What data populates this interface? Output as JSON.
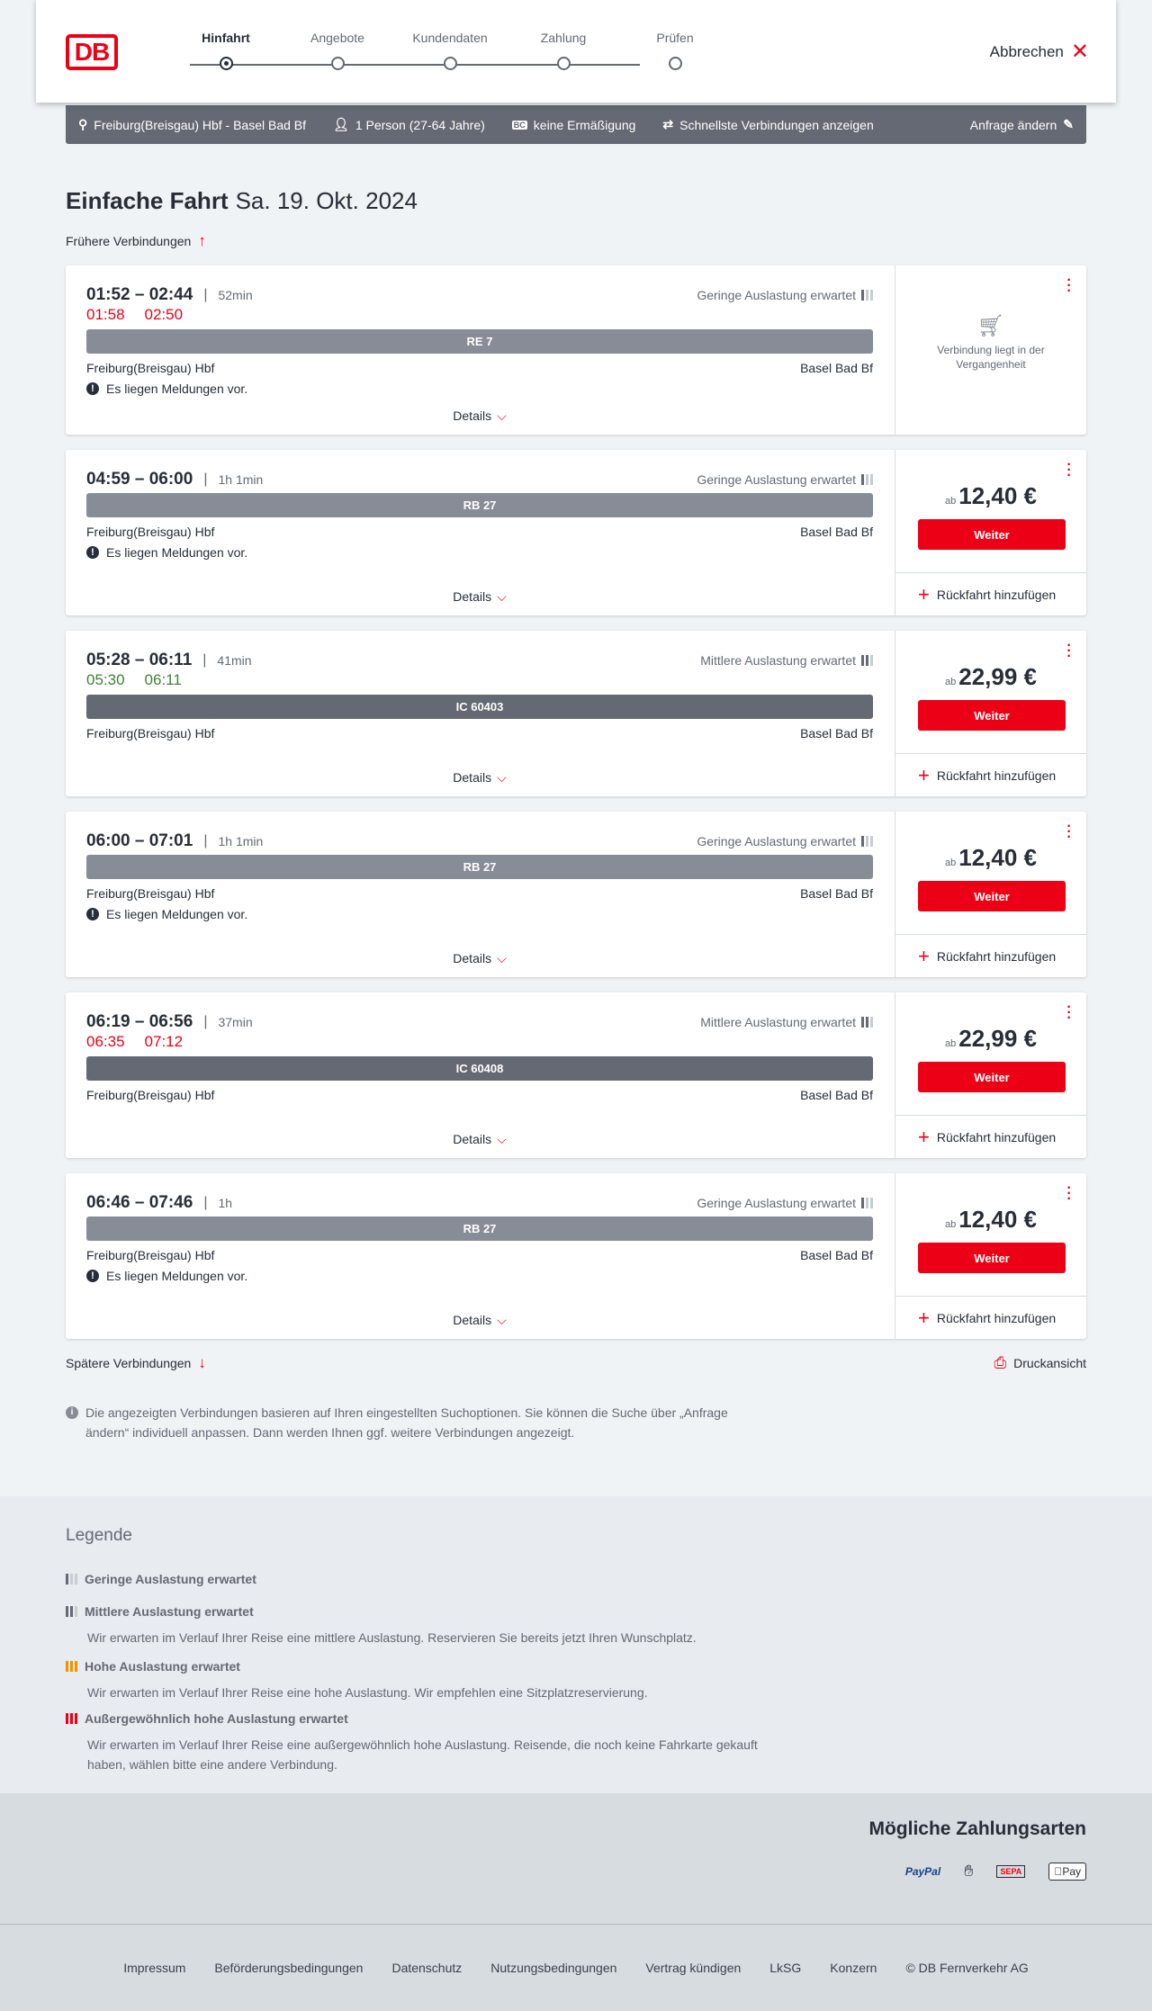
{
  "header": {
    "logo": "DB",
    "steps": [
      "Hinfahrt",
      "Angebote",
      "Kundendaten",
      "Zahlung",
      "Prüfen"
    ],
    "active_step": 0,
    "cancel": "Abbrechen"
  },
  "filter": {
    "route": "Freiburg(Breisgau) Hbf - Basel Bad Bf",
    "travellers": "1 Person (27-64 Jahre)",
    "discount_badge": "BC",
    "discount": "keine Ermäßigung",
    "fastest": "Schnellste Verbindungen anzeigen",
    "change": "Anfrage ändern"
  },
  "title": {
    "type": "Einfache Fahrt",
    "date": "Sa. 19. Okt. 2024"
  },
  "earlier": "Frühere Verbindungen",
  "later": "Spätere Verbindungen",
  "print": "Druckansicht",
  "common": {
    "from": "Freiburg(Breisgau) Hbf",
    "to": "Basel Bad Bf",
    "message": "Es liegen Meldungen vor.",
    "details": "Details",
    "price_prefix": "ab",
    "continue": "Weiter",
    "return": "Rückfahrt hinzufügen",
    "past": "Verbindung liegt in der Vergangenheit"
  },
  "connections": [
    {
      "times": "01:52 – 02:44",
      "duration": "52min",
      "occupancy": "Geringe Auslastung erwartet",
      "occ_level": 1,
      "rt_dep": "01:58",
      "rt_arr": "02:50",
      "rt_status": "late",
      "train": "RE 7",
      "message": true,
      "price": null,
      "past": true
    },
    {
      "times": "04:59 – 06:00",
      "duration": "1h 1min",
      "occupancy": "Geringe Auslastung erwartet",
      "occ_level": 1,
      "train": "RB 27",
      "message": true,
      "price": "12,40 €"
    },
    {
      "times": "05:28 – 06:11",
      "duration": "41min",
      "occupancy": "Mittlere Auslastung erwartet",
      "occ_level": 2,
      "rt_dep": "05:30",
      "rt_arr": "06:11",
      "rt_status": "ontime",
      "train": "IC 60403",
      "message": false,
      "price": "22,99 €"
    },
    {
      "times": "06:00 – 07:01",
      "duration": "1h 1min",
      "occupancy": "Geringe Auslastung erwartet",
      "occ_level": 1,
      "train": "RB 27",
      "message": true,
      "price": "12,40 €"
    },
    {
      "times": "06:19 – 06:56",
      "duration": "37min",
      "occupancy": "Mittlere Auslastung erwartet",
      "occ_level": 2,
      "rt_dep": "06:35",
      "rt_arr": "07:12",
      "rt_status": "late",
      "train": "IC 60408",
      "message": false,
      "price": "22,99 €"
    },
    {
      "times": "06:46 – 07:46",
      "duration": "1h",
      "occupancy": "Geringe Auslastung erwartet",
      "occ_level": 1,
      "train": "RB 27",
      "message": true,
      "price": "12,40 €"
    }
  ],
  "info": "Die angezeigten Verbindungen basieren auf Ihren eingestellten Suchoptionen. Sie können die Suche über „Anfrage ändern“ individuell anpassen. Dann werden Ihnen ggf. weitere Verbindungen angezeigt.",
  "legend": {
    "title": "Legende",
    "items": [
      {
        "label": "Geringe Auslastung erwartet",
        "text": "",
        "color": "#646973",
        "level": 1
      },
      {
        "label": "Mittlere Auslastung erwartet",
        "text": "Wir erwarten im Verlauf Ihrer Reise eine mittlere Auslastung. Reservieren Sie bereits jetzt Ihren Wunschplatz.",
        "color": "#646973",
        "level": 2
      },
      {
        "label": "Hohe Auslastung erwartet",
        "text": "Wir erwarten im Verlauf Ihrer Reise eine hohe Auslastung. Wir empfehlen eine Sitzplatzreservierung.",
        "color": "#f39200",
        "level": 3
      },
      {
        "label": "Außergewöhnlich hohe Auslastung erwartet",
        "text": "Wir erwarten im Verlauf Ihrer Reise eine außergewöhnlich hohe Auslastung. Reisende, die noch keine Fahrkarte gekauft haben, wählen bitte eine andere Verbindung.",
        "color": "#ec0016",
        "level": 4
      }
    ]
  },
  "payment": {
    "title": "Mögliche Zahlungsarten",
    "methods": [
      "PayPal",
      "Kontaktlos",
      "SEPA",
      "Pay"
    ]
  },
  "footer": [
    "Impressum",
    "Beförderungsbedingungen",
    "Datenschutz",
    "Nutzungsbedingungen",
    "Vertrag kündigen",
    "LkSG",
    "Konzern",
    "© DB Fernverkehr AG"
  ],
  "colors": {
    "accent": "#ec0016",
    "ontime": "#408335",
    "bar": "#646973"
  }
}
